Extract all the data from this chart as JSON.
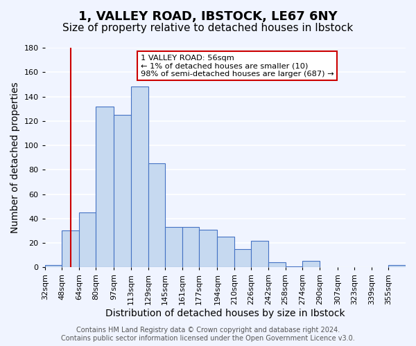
{
  "title": "1, VALLEY ROAD, IBSTOCK, LE67 6NY",
  "subtitle": "Size of property relative to detached houses in Ibstock",
  "xlabel": "Distribution of detached houses by size in Ibstock",
  "ylabel": "Number of detached properties",
  "bar_values": [
    2,
    30,
    45,
    132,
    125,
    148,
    85,
    33,
    33,
    31,
    25,
    15,
    22,
    4,
    1,
    5,
    0,
    0,
    0,
    0,
    2
  ],
  "bin_labels": [
    "32sqm",
    "48sqm",
    "64sqm",
    "80sqm",
    "97sqm",
    "113sqm",
    "129sqm",
    "145sqm",
    "161sqm",
    "177sqm",
    "194sqm",
    "210sqm",
    "226sqm",
    "242sqm",
    "258sqm",
    "274sqm",
    "290sqm",
    "307sqm",
    "323sqm",
    "339sqm",
    "355sqm"
  ],
  "bin_edges": [
    32,
    48,
    64,
    80,
    97,
    113,
    129,
    145,
    161,
    177,
    194,
    210,
    226,
    242,
    258,
    274,
    290,
    307,
    323,
    339,
    355
  ],
  "bar_color": "#c6d9f0",
  "bar_edge_color": "#4472c4",
  "property_line_x": 56,
  "property_line_color": "#cc0000",
  "ylim": [
    0,
    180
  ],
  "yticks": [
    0,
    20,
    40,
    60,
    80,
    100,
    120,
    140,
    160,
    180
  ],
  "annotation_line1": "1 VALLEY ROAD: 56sqm",
  "annotation_line2": "← 1% of detached houses are smaller (10)",
  "annotation_line3": "98% of semi-detached houses are larger (687) →",
  "annotation_box_color": "#ffffff",
  "annotation_box_edge_color": "#cc0000",
  "footer_line1": "Contains HM Land Registry data © Crown copyright and database right 2024.",
  "footer_line2": "Contains public sector information licensed under the Open Government Licence v3.0.",
  "background_color": "#f0f4ff",
  "grid_color": "#ffffff",
  "title_fontsize": 13,
  "subtitle_fontsize": 11,
  "axis_label_fontsize": 10,
  "tick_fontsize": 8,
  "footer_fontsize": 7
}
